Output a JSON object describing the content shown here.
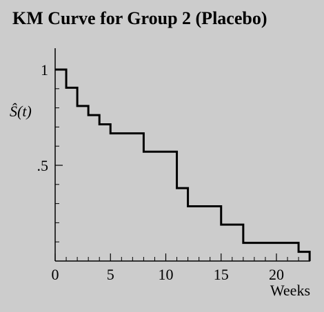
{
  "chart_data": {
    "type": "line",
    "step": true,
    "title": "KM Curve for Group 2 (Placebo)",
    "xlabel": "Weeks",
    "ylabel": "Ŝ(t)",
    "xlim": [
      0,
      23
    ],
    "ylim": [
      0,
      1.05
    ],
    "x_ticks": [
      0,
      5,
      10,
      15,
      20
    ],
    "x_tick_labels": [
      "0",
      "5",
      "10",
      "15",
      "20"
    ],
    "x_minor_ticks": [
      1,
      2,
      3,
      4,
      6,
      7,
      8,
      9,
      11,
      12,
      13,
      14,
      16,
      17,
      18,
      19,
      21,
      22
    ],
    "y_ticks": [
      0.5,
      1
    ],
    "y_tick_labels": [
      ".5",
      "1"
    ],
    "y_minor_ticks": [
      0.1,
      0.2,
      0.3,
      0.4,
      0.6,
      0.7,
      0.8,
      0.9
    ],
    "series": [
      {
        "name": "Placebo",
        "x": [
          0,
          1,
          2,
          3,
          4,
          5,
          8,
          11,
          12,
          15,
          17,
          22,
          23
        ],
        "y": [
          1.0,
          0.905,
          0.81,
          0.762,
          0.714,
          0.667,
          0.571,
          0.381,
          0.286,
          0.19,
          0.095,
          0.048,
          0.0
        ]
      }
    ]
  }
}
